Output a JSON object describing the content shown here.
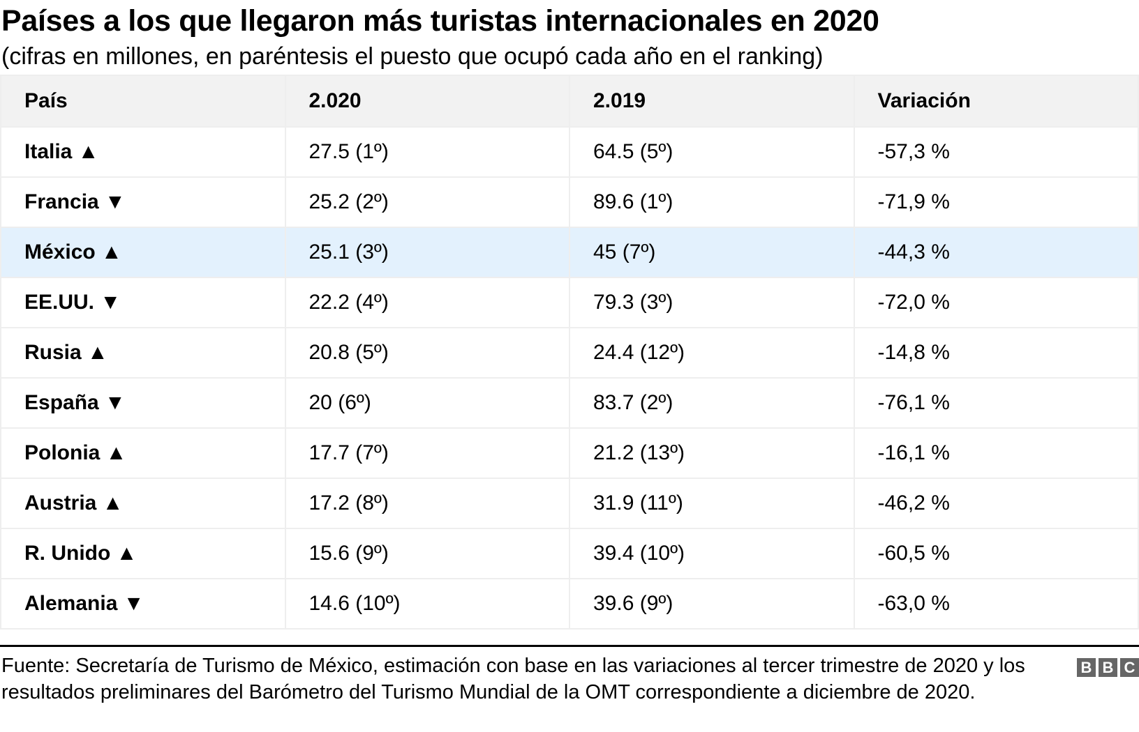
{
  "title": "Países a los que llegaron más turistas internacionales en 2020",
  "subtitle": "(cifras en millones, en paréntesis el puesto que ocupó cada año en el ranking)",
  "table": {
    "headers": [
      "País",
      "2.020",
      "2.019",
      "Variación"
    ],
    "rows": [
      {
        "country": "Italia ▲",
        "y2020": "27.5 (1º)",
        "y2019": "64.5 (5º)",
        "variation": "-57,3 %"
      },
      {
        "country": "Francia ▼",
        "y2020": "25.2 (2º)",
        "y2019": "89.6 (1º)",
        "variation": "-71,9 %"
      },
      {
        "country": "México ▲",
        "y2020": "25.1 (3º)",
        "y2019": "45 (7º)",
        "variation": "-44,3 %"
      },
      {
        "country": "EE.UU. ▼",
        "y2020": "22.2 (4º)",
        "y2019": "79.3 (3º)",
        "variation": "-72,0 %"
      },
      {
        "country": "Rusia ▲",
        "y2020": "20.8 (5º)",
        "y2019": "24.4 (12º)",
        "variation": "-14,8 %"
      },
      {
        "country": "España ▼",
        "y2020": "20 (6º)",
        "y2019": "83.7 (2º)",
        "variation": "-76,1 %"
      },
      {
        "country": "Polonia ▲",
        "y2020": "17.7 (7º)",
        "y2019": "21.2 (13º)",
        "variation": "-16,1 %"
      },
      {
        "country": "Austria ▲",
        "y2020": "17.2 (8º)",
        "y2019": "31.9 (11º)",
        "variation": "-46,2 %"
      },
      {
        "country": "R. Unido ▲",
        "y2020": "15.6 (9º)",
        "y2019": "39.4 (10º)",
        "variation": "-60,5 %"
      },
      {
        "country": "Alemania ▼",
        "y2020": "14.6 (10º)",
        "y2019": "39.6 (9º)",
        "variation": "-63,0 %"
      }
    ],
    "highlight_color": "#e3f1fd"
  },
  "footer": "Fuente: Secretaría de Turismo de México, estimación con base en las variaciones al tercer trimestre de 2020 y los resultados preliminares del Barómetro del Turismo Mundial de la OMT correspondiente a diciembre de 2020.",
  "logo": [
    "B",
    "B",
    "C"
  ]
}
